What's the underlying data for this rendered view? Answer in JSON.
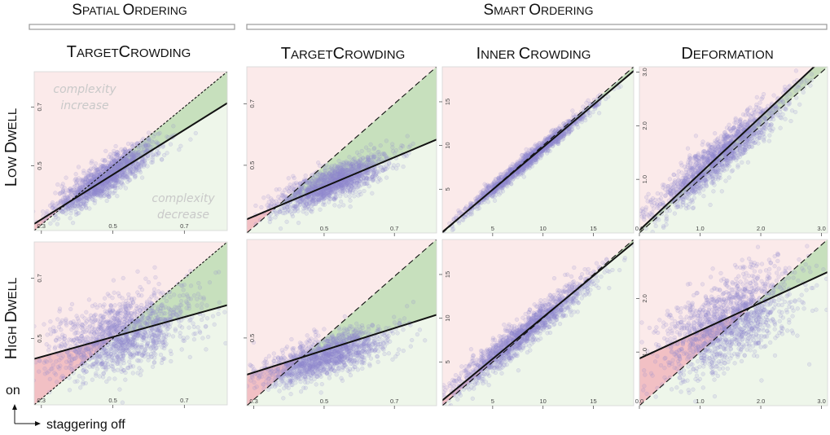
{
  "group_headers": {
    "spatial": "SPATIAL ORDERING",
    "smart": "SMART ORDERING"
  },
  "column_titles": [
    "TARGETCROWDING",
    "TARGETCROWDING",
    "INNER CROWDING",
    "DEFORMATION"
  ],
  "row_titles": [
    "LOW DWELL",
    "HIGH DWELL"
  ],
  "legend": {
    "y_label": "on",
    "x_label": "staggering off"
  },
  "annotations": {
    "increase": [
      "complexity",
      "increase"
    ],
    "decrease": [
      "complexity",
      "decrease"
    ]
  },
  "colors": {
    "point": "#8f86cf",
    "region_up": "#fbeaea",
    "region_down": "#eef6ea",
    "fill_above": "#bfdcb5",
    "fill_below": "#f0b9bd",
    "fit_line": "#111111",
    "diagonal": "#111111"
  },
  "chart_data": [
    {
      "type": "scatter",
      "panel": "spatial-targetcrowding-low",
      "xlim": [
        0.28,
        0.82
      ],
      "ylim": [
        0.28,
        0.82
      ],
      "x_ticks": [
        "0.3",
        "0.5",
        "0.7"
      ],
      "y_ticks": [
        "0.5",
        "0.7"
      ],
      "fit_line": {
        "intercept": 0.09,
        "slope": 0.76
      },
      "cloud": {
        "center": [
          0.48,
          0.46
        ],
        "spread": [
          0.07,
          0.06
        ],
        "corr": 0.88,
        "n": 1400
      },
      "reference_line": "y = x"
    },
    {
      "type": "scatter",
      "panel": "smart-targetcrowding-low",
      "xlim": [
        0.28,
        0.82
      ],
      "ylim": [
        0.28,
        0.82
      ],
      "x_ticks": [
        "0.5",
        "0.7"
      ],
      "y_ticks": [
        "0.5",
        "0.7"
      ],
      "fit_line": {
        "intercept": 0.19,
        "slope": 0.48
      },
      "cloud": {
        "center": [
          0.52,
          0.44
        ],
        "spread": [
          0.08,
          0.045
        ],
        "corr": 0.8,
        "n": 1400
      },
      "reference_line": "y = x"
    },
    {
      "type": "scatter",
      "panel": "smart-innercrowding-low",
      "xlim": [
        0,
        19
      ],
      "ylim": [
        0,
        19
      ],
      "x_ticks": [
        "5",
        "10",
        "15"
      ],
      "y_ticks": [
        "5",
        "10",
        "15"
      ],
      "fit_line": {
        "intercept": 0.1,
        "slope": 0.97
      },
      "cloud": {
        "center": [
          8.5,
          8.3
        ],
        "spread": [
          3.2,
          3.1
        ],
        "corr": 0.99,
        "n": 1400
      },
      "reference_line": "y = x"
    },
    {
      "type": "scatter",
      "panel": "smart-deformation-low",
      "xlim": [
        0,
        3.1
      ],
      "ylim": [
        0,
        3.1
      ],
      "x_ticks": [
        "0.0",
        "1.0",
        "2.0",
        "3.0"
      ],
      "y_ticks": [
        "1.0",
        "2.0",
        "3.0"
      ],
      "fit_line": {
        "intercept": 0.05,
        "slope": 1.06
      },
      "cloud": {
        "center": [
          1.3,
          1.4
        ],
        "spread": [
          0.55,
          0.55
        ],
        "corr": 0.93,
        "n": 1400
      },
      "reference_line": "y = x"
    },
    {
      "type": "scatter",
      "panel": "spatial-targetcrowding-high",
      "xlim": [
        0.28,
        0.82
      ],
      "ylim": [
        0.28,
        0.82
      ],
      "x_ticks": [
        "0.3",
        "0.5",
        "0.7"
      ],
      "y_ticks": [
        "0.5",
        "0.7"
      ],
      "fit_line": {
        "intercept": 0.34,
        "slope": 0.33
      },
      "cloud": {
        "center": [
          0.52,
          0.51
        ],
        "spread": [
          0.1,
          0.07
        ],
        "corr": 0.5,
        "n": 1400
      },
      "reference_line": "y = x"
    },
    {
      "type": "scatter",
      "panel": "smart-targetcrowding-high",
      "xlim": [
        0.28,
        0.82
      ],
      "ylim": [
        0.28,
        0.82
      ],
      "x_ticks": [
        "0.3",
        "0.5",
        "0.7"
      ],
      "y_ticks": [
        "0.5"
      ],
      "fit_line": {
        "intercept": 0.28,
        "slope": 0.36
      },
      "cloud": {
        "center": [
          0.5,
          0.44
        ],
        "spread": [
          0.09,
          0.045
        ],
        "corr": 0.7,
        "n": 1400
      },
      "reference_line": "y = x"
    },
    {
      "type": "scatter",
      "panel": "smart-innercrowding-high",
      "xlim": [
        0,
        19
      ],
      "ylim": [
        0,
        19
      ],
      "x_ticks": [
        "5",
        "10",
        "15"
      ],
      "y_ticks": [
        "5",
        "10",
        "15"
      ],
      "fit_line": {
        "intercept": 0.6,
        "slope": 0.95
      },
      "cloud": {
        "center": [
          8.0,
          8.2
        ],
        "spread": [
          3.4,
          3.2
        ],
        "corr": 0.96,
        "n": 1400
      },
      "reference_line": "y = x"
    },
    {
      "type": "scatter",
      "panel": "smart-deformation-high",
      "xlim": [
        0,
        3.1
      ],
      "ylim": [
        0,
        3.1
      ],
      "x_ticks": [
        "0.0",
        "1.0",
        "2.0",
        "3.0"
      ],
      "y_ticks": [
        "1.0",
        "2.0"
      ],
      "fit_line": {
        "intercept": 0.88,
        "slope": 0.52
      },
      "cloud": {
        "center": [
          1.45,
          1.55
        ],
        "spread": [
          0.55,
          0.5
        ],
        "corr": 0.55,
        "n": 1400
      },
      "reference_line": "y = x"
    }
  ]
}
